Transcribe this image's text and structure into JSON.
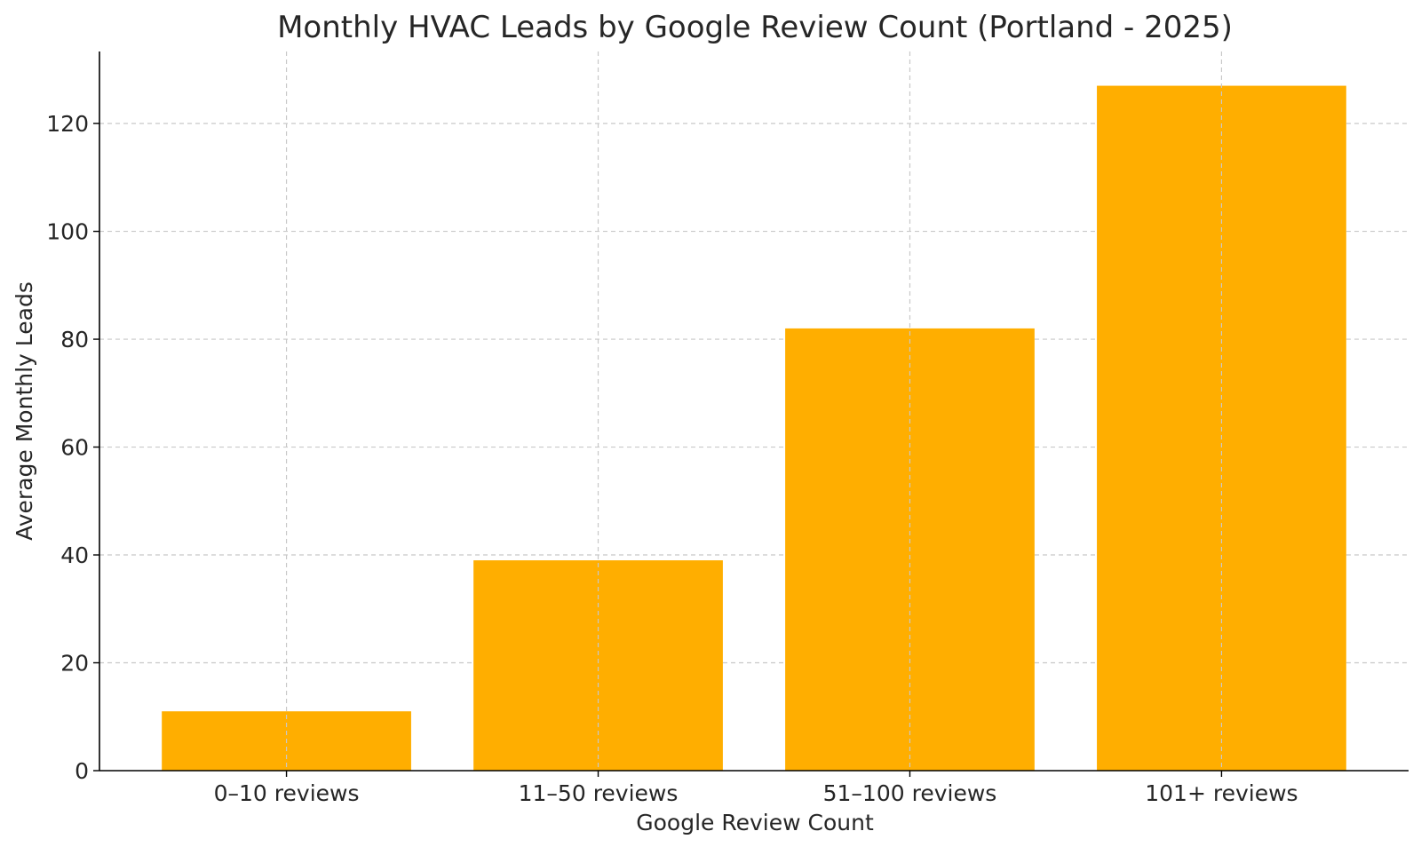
{
  "chart_data": {
    "type": "bar",
    "title": "Monthly HVAC Leads by Google Review Count (Portland - 2025)",
    "xlabel": "Google Review Count",
    "ylabel": "Average Monthly Leads",
    "categories": [
      "0–10 reviews",
      "11–50 reviews",
      "51–100 reviews",
      "101+ reviews"
    ],
    "values": [
      11,
      39,
      82,
      127
    ],
    "ylim": [
      0,
      133.35
    ],
    "yticks": [
      0,
      20,
      40,
      60,
      80,
      100,
      120
    ],
    "grid": true,
    "bar_color": "#ffae00"
  }
}
